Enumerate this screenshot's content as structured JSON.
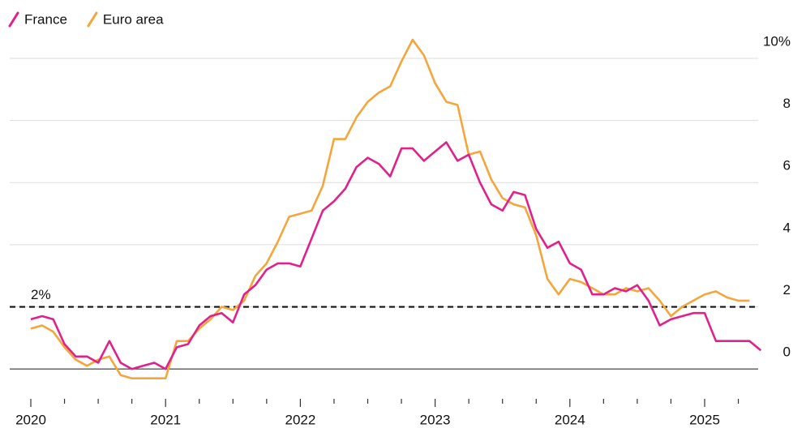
{
  "chart_data": {
    "type": "line",
    "categories": [
      "2020",
      null,
      null,
      null,
      null,
      null,
      null,
      null,
      null,
      null,
      null,
      null,
      "2021",
      null,
      null,
      null,
      null,
      null,
      null,
      null,
      null,
      null,
      null,
      null,
      "2022",
      null,
      null,
      null,
      null,
      null,
      null,
      null,
      null,
      null,
      null,
      null,
      "2023",
      null,
      null,
      null,
      null,
      null,
      null,
      null,
      null,
      null,
      null,
      null,
      "2024",
      null,
      null,
      null,
      null,
      null,
      null,
      null,
      null,
      null,
      null,
      null,
      "2025",
      null,
      null,
      null,
      null,
      null
    ],
    "series": [
      {
        "name": "France",
        "color": "#e0218a",
        "values": [
          1.6,
          1.7,
          1.6,
          0.8,
          0.4,
          0.4,
          0.2,
          0.9,
          0.2,
          0.0,
          0.1,
          0.2,
          0.0,
          0.7,
          0.8,
          1.4,
          1.7,
          1.8,
          1.5,
          2.4,
          2.7,
          3.2,
          3.4,
          3.4,
          3.3,
          4.2,
          5.1,
          5.4,
          5.8,
          6.5,
          6.8,
          6.6,
          6.2,
          7.1,
          7.1,
          6.7,
          7.0,
          7.3,
          6.7,
          6.9,
          6.0,
          5.3,
          5.1,
          5.7,
          5.6,
          4.5,
          3.9,
          4.1,
          3.4,
          3.2,
          2.4,
          2.4,
          2.6,
          2.5,
          2.7,
          2.2,
          1.4,
          1.6,
          1.7,
          1.8,
          1.8,
          0.9,
          0.9,
          0.9,
          0.9,
          0.6
        ]
      },
      {
        "name": "Euro area",
        "color": "#f4a63c",
        "values": [
          1.3,
          1.4,
          1.2,
          0.7,
          0.3,
          0.1,
          0.3,
          0.4,
          -0.2,
          -0.3,
          -0.3,
          -0.3,
          -0.3,
          0.9,
          0.9,
          1.3,
          1.6,
          2.0,
          1.9,
          2.2,
          3.0,
          3.4,
          4.1,
          4.9,
          5.0,
          5.1,
          5.9,
          7.4,
          7.4,
          8.1,
          8.6,
          8.9,
          9.1,
          9.9,
          10.6,
          10.1,
          9.2,
          8.6,
          8.5,
          6.9,
          7.0,
          6.1,
          5.5,
          5.3,
          5.2,
          4.3,
          2.9,
          2.4,
          2.9,
          2.8,
          2.6,
          2.4,
          2.4,
          2.6,
          2.5,
          2.6,
          2.2,
          1.7,
          2.0,
          2.2,
          2.4,
          2.5,
          2.3,
          2.2,
          2.2,
          null
        ]
      }
    ],
    "reference_line": {
      "value": 2,
      "label": "2%"
    },
    "ylim": [
      -0.7,
      10.6
    ],
    "yticks": [
      0,
      2,
      4,
      6,
      8,
      {
        "value": 10,
        "label": "10%"
      }
    ],
    "grid": true
  }
}
